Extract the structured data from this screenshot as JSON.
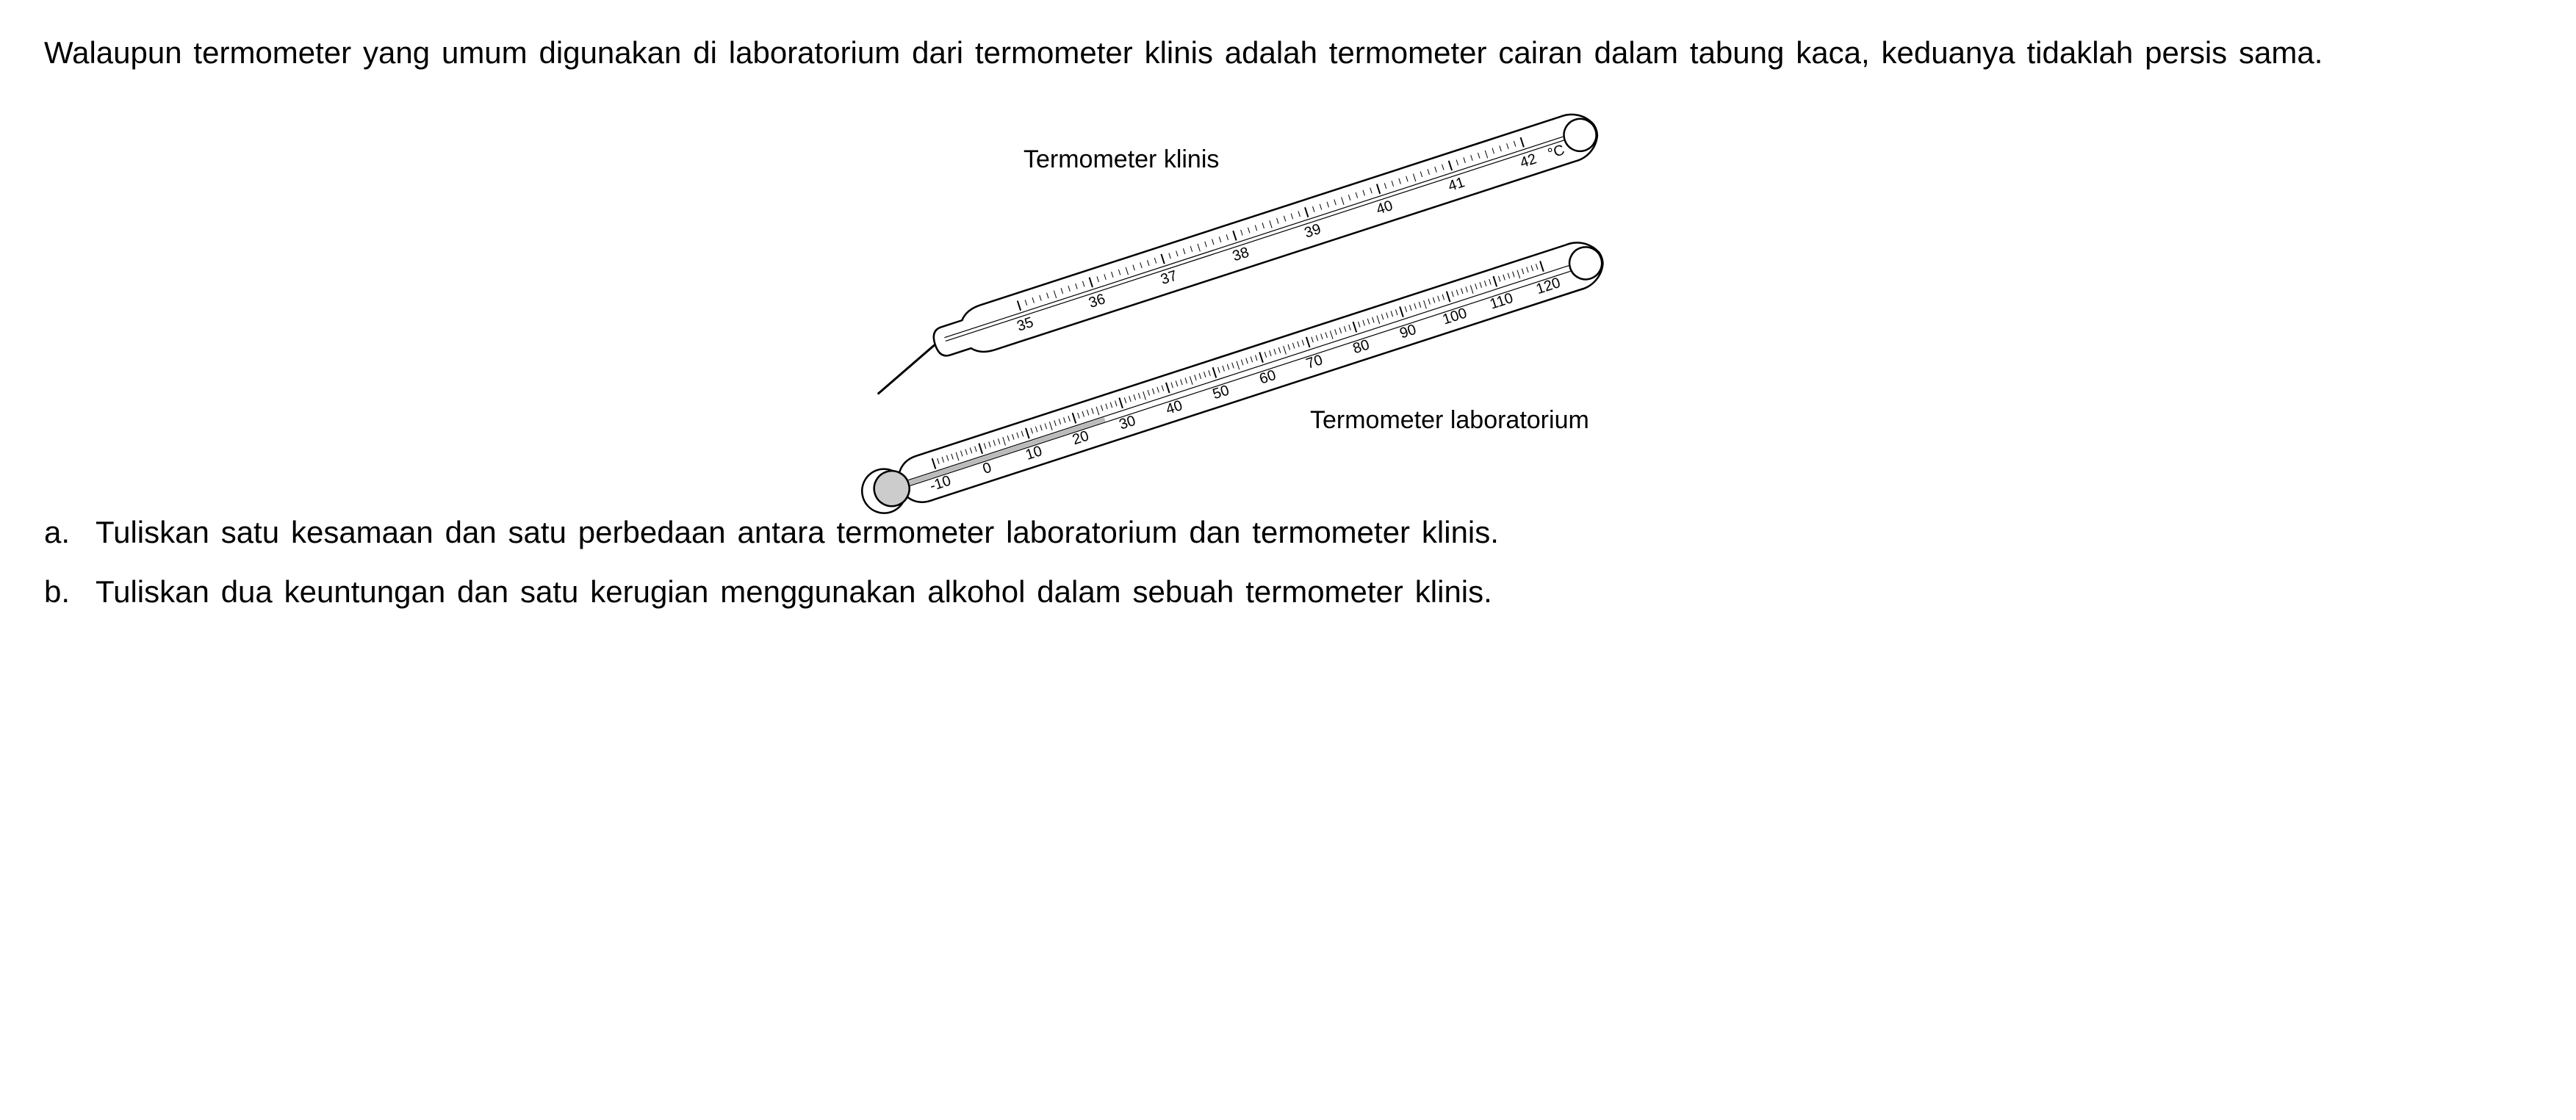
{
  "intro": {
    "text": "Walaupun termometer yang umum digunakan di laboratorium dari termometer klinis adalah termometer cairan dalam tabung kaca, keduanya tidaklah persis sama."
  },
  "figure": {
    "clinical": {
      "label": "Termometer klinis",
      "scale_values": [
        "35",
        "36",
        "37",
        "38",
        "39",
        "40",
        "41",
        "42"
      ],
      "unit": "°C",
      "label_fontsize": 34,
      "tick_fontsize": 20,
      "stroke_color": "#000000",
      "stroke_width": 2.5,
      "fill_color": "#ffffff"
    },
    "laboratory": {
      "label": "Termometer laboratorium",
      "scale_values": [
        "-10",
        "0",
        "10",
        "20",
        "30",
        "40",
        "50",
        "60",
        "70",
        "80",
        "90",
        "100",
        "110",
        "120"
      ],
      "label_fontsize": 34,
      "tick_fontsize": 20,
      "stroke_color": "#000000",
      "stroke_width": 2.5,
      "fill_color": "#ffffff",
      "bulb_fill": "#cccccc",
      "mercury_fill": "#bbbbbb"
    },
    "rotation_angle_deg": -18
  },
  "questions": {
    "a": {
      "label": "a.",
      "text": "Tuliskan satu kesamaan dan satu perbedaan antara termometer laboratorium dan termometer klinis."
    },
    "b": {
      "label": "b.",
      "text": "Tuliskan dua keuntungan dan satu kerugian menggunakan alkohol dalam sebuah termometer klinis."
    }
  },
  "styling": {
    "background_color": "#ffffff",
    "text_color": "#000000",
    "body_fontsize": 42,
    "line_height": 1.5
  }
}
